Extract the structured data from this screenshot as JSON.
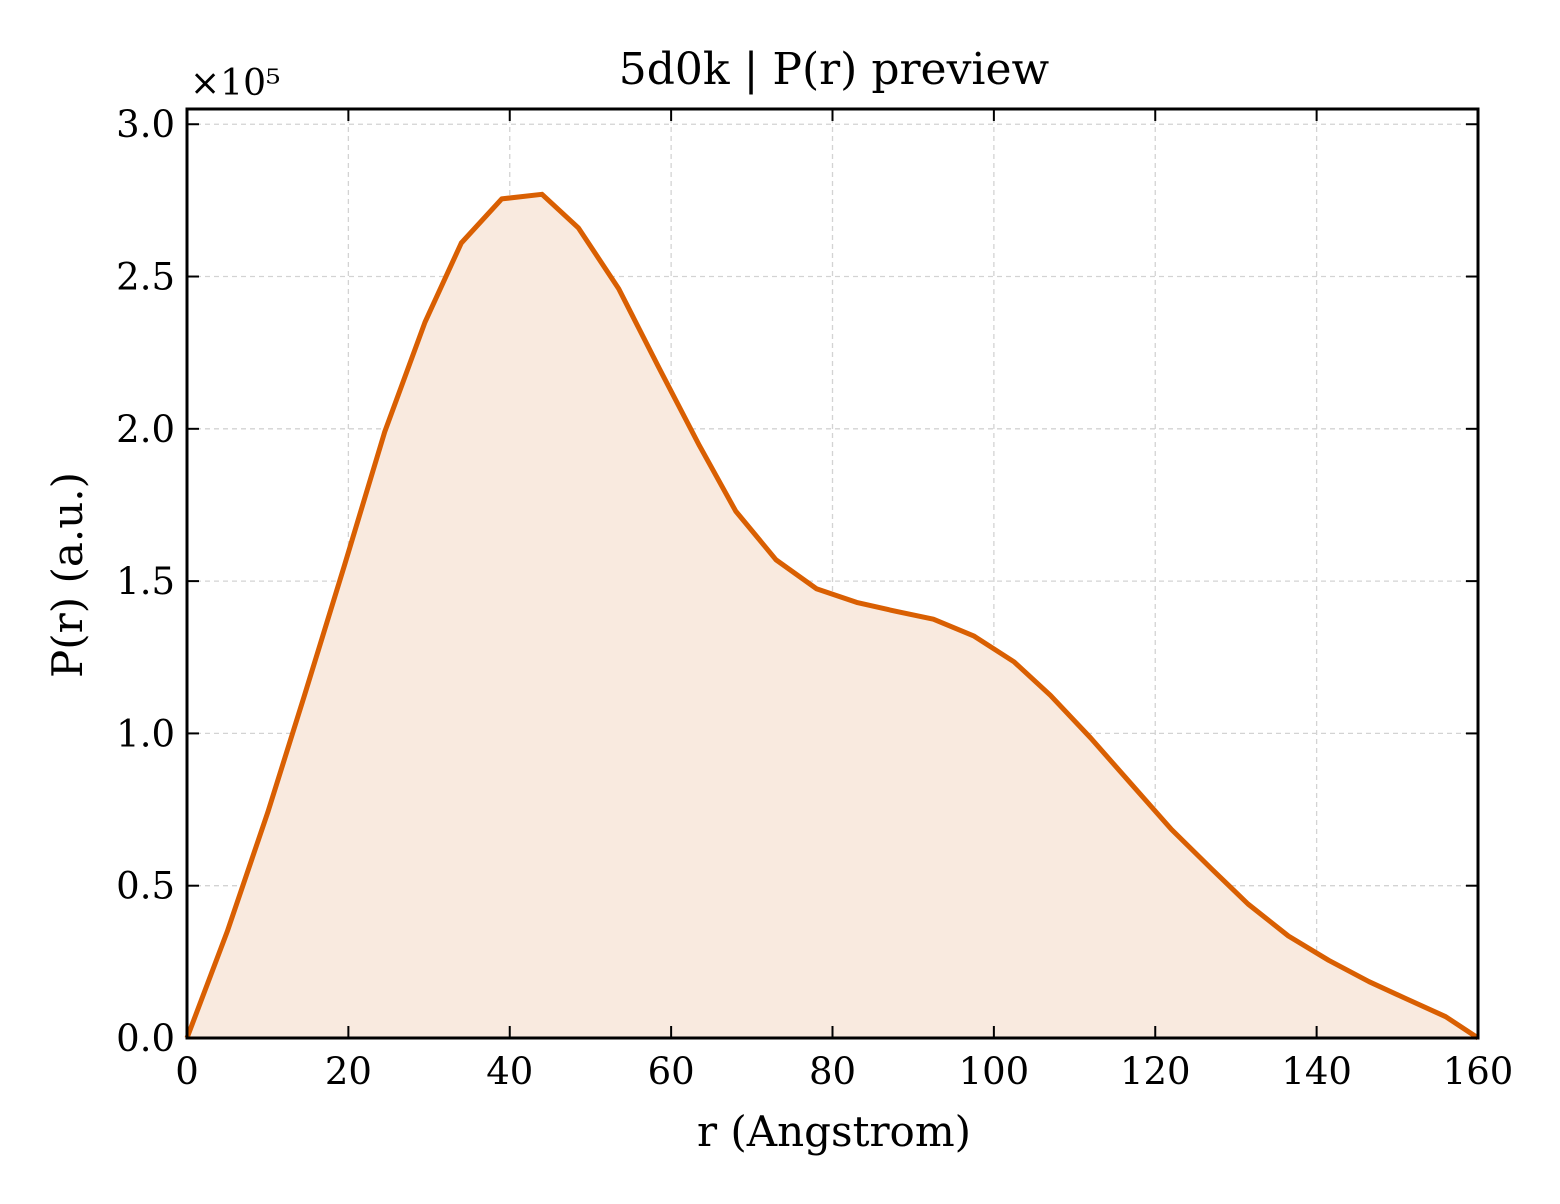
{
  "chart_data": {
    "type": "area",
    "title": "5d0k | P(r) preview",
    "xlabel": "r (Angstrom)",
    "ylabel": "P(r) (a.u.)",
    "y_offset_label": "×10⁵",
    "y_scale": 100000,
    "xlim": [
      0,
      160
    ],
    "ylim": [
      0,
      305000
    ],
    "xticks": [
      0,
      20,
      40,
      60,
      80,
      100,
      120,
      140,
      160
    ],
    "xtick_labels": [
      "0",
      "20",
      "40",
      "60",
      "80",
      "100",
      "120",
      "140",
      "160"
    ],
    "yticks": [
      0,
      50000,
      100000,
      150000,
      200000,
      250000,
      300000
    ],
    "ytick_labels": [
      "0.0",
      "0.5",
      "1.0",
      "1.5",
      "2.0",
      "2.5",
      "3.0"
    ],
    "grid": true,
    "line_color": "#d95f02",
    "fill_color": "#f9eadf",
    "x": [
      0,
      5,
      10,
      14.5,
      19.5,
      24.5,
      29.5,
      34,
      39,
      44,
      48.5,
      53.5,
      58.5,
      63.5,
      68,
      73,
      78,
      83,
      88,
      92.5,
      97.5,
      102.5,
      107,
      112,
      117,
      122,
      127,
      131.5,
      136.5,
      141.5,
      146.5,
      151,
      156,
      160
    ],
    "values": [
      0,
      35000,
      74000,
      112000,
      155000,
      199000,
      235000,
      261000,
      275500,
      277000,
      266000,
      246000,
      220000,
      194500,
      173000,
      157000,
      147500,
      143000,
      140000,
      137500,
      132000,
      123500,
      112500,
      98500,
      83500,
      68500,
      55500,
      44000,
      33500,
      25500,
      18500,
      13000,
      7000,
      0
    ]
  }
}
